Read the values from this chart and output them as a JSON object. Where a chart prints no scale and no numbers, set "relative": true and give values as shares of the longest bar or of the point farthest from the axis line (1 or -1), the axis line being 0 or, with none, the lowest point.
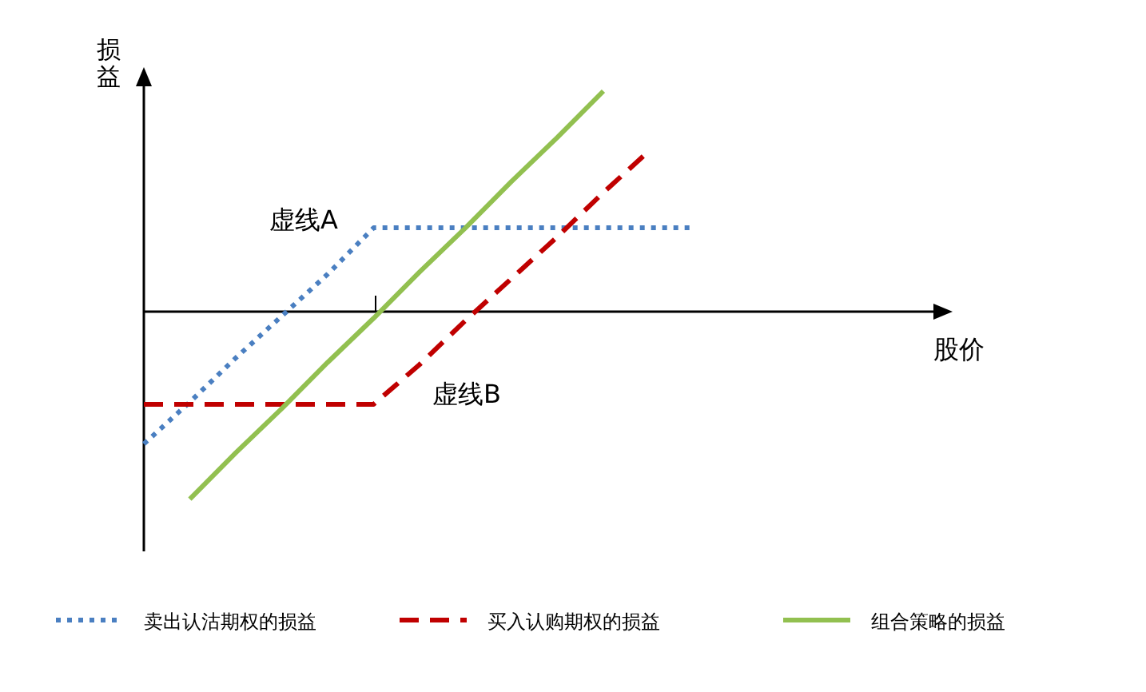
{
  "chart_data": {
    "type": "line",
    "relative": true,
    "ylabel": "损益",
    "legend": "bottom",
    "categories": [
      null,
      null,
      null,
      null,
      null,
      null,
      null,
      null,
      null,
      null,
      null,
      null,
      null
    ],
    "series": [
      {
        "name": "卖出认沽期权的损益",
        "color": "#4a7fc1",
        "line_style": "dotted",
        "values": [
          -0.6,
          -0.41,
          -0.21,
          -0.02,
          0.17,
          0.38,
          0.38,
          0.38,
          0.38,
          0.38,
          0.38,
          0.38,
          0.38
        ]
      },
      {
        "name": "买入认购期权的损益",
        "color": "#c00000",
        "line_style": "dashed",
        "values": [
          -0.42,
          -0.42,
          -0.42,
          -0.42,
          -0.42,
          -0.42,
          -0.24,
          -0.04,
          0.15,
          0.34,
          0.54,
          0.73,
          null
        ]
      },
      {
        "name": "组合策略的损益",
        "color": "#92c050",
        "line_style": "solid",
        "values": [
          null,
          -0.85,
          -0.64,
          -0.44,
          -0.23,
          -0.03,
          0.18,
          0.38,
          0.59,
          0.79,
          1.0,
          null,
          null
        ]
      }
    ],
    "annotations": [
      "虚线A",
      "虚线B",
      "股价"
    ]
  }
}
